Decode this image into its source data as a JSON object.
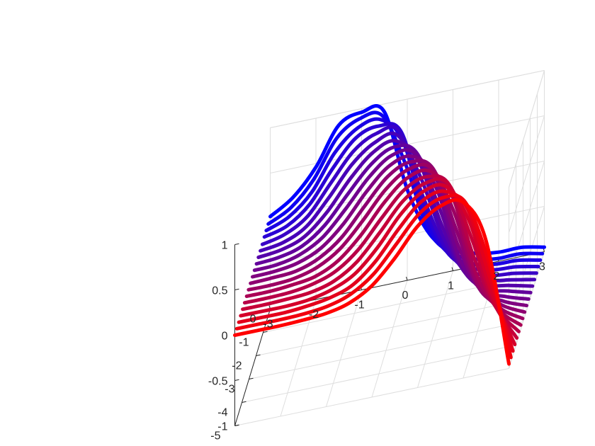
{
  "chart_data": {
    "type": "line",
    "title": "",
    "xlabel": "",
    "ylabel": "",
    "zlabel": "",
    "xlim": [
      -3,
      3
    ],
    "ylim": [
      -5,
      0
    ],
    "zlim": [
      -1,
      1
    ],
    "x_ticks": [
      "-3",
      "-2",
      "-1",
      "0",
      "1",
      "2",
      "3"
    ],
    "y_ticks": [
      "0",
      "-1",
      "-2",
      "-3",
      "-4",
      "-5"
    ],
    "z_ticks": [
      "1",
      "0.5",
      "0",
      "-0.5",
      "-1"
    ],
    "grid": true,
    "colors": {
      "start": "#ff0000",
      "end": "#0000ff",
      "axis": "#262626",
      "grid": "#dedede"
    },
    "curve_function": "z = -tanh(2.6*(x + 0.5*y)) * exp(-0.1*(x + 0.5*y)^2) * 0.25^(x + 0.5*y + 1)",
    "x_samples": [
      -3,
      -2.5,
      -2,
      -1.5,
      -1,
      -0.5,
      0,
      0.5,
      1,
      1.5,
      2,
      2.5,
      3
    ],
    "series": [
      {
        "y": 0.0,
        "z": [
          0.02,
          0.18,
          0.46,
          0.87,
          0.96,
          0.91,
          0.0,
          -0.55,
          -0.77,
          -0.86,
          -0.9,
          -0.9,
          -0.95
        ]
      },
      {
        "y": -0.278,
        "z": [
          0.01,
          0.14,
          0.4,
          0.8,
          0.96,
          0.94,
          0.36,
          -0.42,
          -0.73,
          -0.85,
          -0.9,
          -0.9,
          -0.95
        ]
      },
      {
        "y": -0.556,
        "z": [
          0.01,
          0.11,
          0.33,
          0.71,
          0.93,
          0.97,
          0.67,
          -0.25,
          -0.67,
          -0.83,
          -0.89,
          -0.9,
          -0.95
        ]
      },
      {
        "y": -0.833,
        "z": [
          0.01,
          0.08,
          0.27,
          0.61,
          0.89,
          0.97,
          0.85,
          -0.04,
          -0.58,
          -0.8,
          -0.88,
          -0.9,
          -0.95
        ]
      },
      {
        "y": -1.111,
        "z": [
          0.0,
          0.06,
          0.21,
          0.52,
          0.82,
          0.96,
          0.93,
          0.18,
          -0.45,
          -0.76,
          -0.87,
          -0.9,
          -0.95
        ]
      },
      {
        "y": -1.389,
        "z": [
          0.0,
          0.04,
          0.16,
          0.43,
          0.74,
          0.93,
          0.96,
          0.45,
          -0.27,
          -0.71,
          -0.85,
          -0.9,
          -0.95
        ]
      },
      {
        "y": -1.667,
        "z": [
          0.0,
          0.03,
          0.12,
          0.34,
          0.65,
          0.89,
          0.97,
          0.7,
          -0.05,
          -0.63,
          -0.83,
          -0.89,
          -0.95
        ]
      },
      {
        "y": -1.944,
        "z": [
          0.0,
          0.02,
          0.09,
          0.27,
          0.56,
          0.83,
          0.97,
          0.86,
          0.2,
          -0.52,
          -0.8,
          -0.88,
          -0.95
        ]
      },
      {
        "y": -2.222,
        "z": [
          0.0,
          0.01,
          0.07,
          0.21,
          0.47,
          0.76,
          0.95,
          0.93,
          0.46,
          -0.36,
          -0.75,
          -0.87,
          -0.95
        ]
      },
      {
        "y": -2.5,
        "z": [
          0.0,
          0.01,
          0.05,
          0.16,
          0.38,
          0.68,
          0.91,
          0.96,
          0.68,
          -0.13,
          -0.68,
          -0.85,
          -0.95
        ]
      },
      {
        "y": -2.778,
        "z": [
          0.0,
          0.01,
          0.03,
          0.12,
          0.3,
          0.59,
          0.86,
          0.97,
          0.84,
          0.12,
          -0.58,
          -0.82,
          -0.95
        ]
      },
      {
        "y": -3.056,
        "z": [
          0.0,
          0.0,
          0.02,
          0.09,
          0.24,
          0.5,
          0.79,
          0.96,
          0.92,
          0.38,
          -0.44,
          -0.78,
          -0.95
        ]
      },
      {
        "y": -3.333,
        "z": [
          0.0,
          0.0,
          0.02,
          0.06,
          0.18,
          0.41,
          0.71,
          0.93,
          0.96,
          0.63,
          -0.25,
          -0.72,
          -0.95
        ]
      },
      {
        "y": -3.611,
        "z": [
          0.0,
          0.0,
          0.01,
          0.05,
          0.14,
          0.33,
          0.62,
          0.88,
          0.97,
          0.81,
          0.0,
          -0.63,
          -0.95
        ]
      },
      {
        "y": -3.889,
        "z": [
          0.0,
          0.0,
          0.01,
          0.03,
          0.1,
          0.26,
          0.53,
          0.82,
          0.97,
          0.91,
          0.27,
          -0.51,
          -0.95
        ]
      },
      {
        "y": -4.167,
        "z": [
          0.0,
          0.0,
          0.0,
          0.02,
          0.08,
          0.2,
          0.44,
          0.75,
          0.95,
          0.95,
          0.52,
          -0.33,
          -0.95
        ]
      },
      {
        "y": -4.444,
        "z": [
          0.0,
          0.0,
          0.0,
          0.02,
          0.06,
          0.15,
          0.36,
          0.66,
          0.91,
          0.97,
          0.73,
          -0.09,
          -0.95
        ]
      },
      {
        "y": -4.722,
        "z": [
          0.0,
          0.0,
          0.0,
          0.01,
          0.04,
          0.12,
          0.29,
          0.57,
          0.85,
          0.97,
          0.87,
          0.18,
          -0.95
        ]
      },
      {
        "y": -5.0,
        "z": [
          0.0,
          0.0,
          0.0,
          0.01,
          0.03,
          0.09,
          0.23,
          0.48,
          0.78,
          0.95,
          0.94,
          0.46,
          -0.95
        ]
      }
    ]
  }
}
